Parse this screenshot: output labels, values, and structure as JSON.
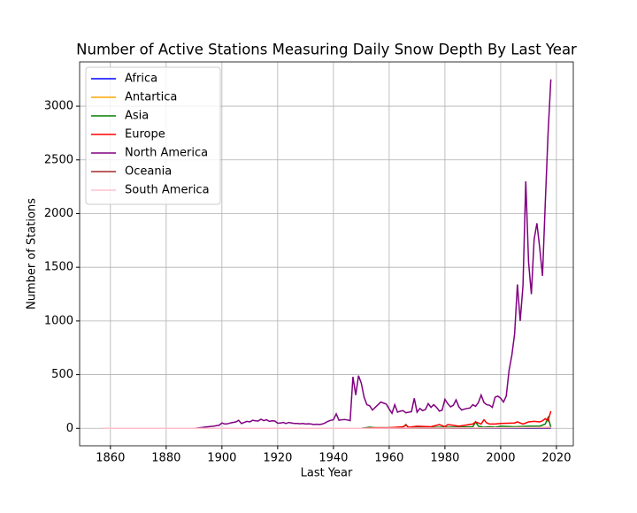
{
  "chart_data": {
    "type": "line",
    "title": "Number of Active Stations Measuring Daily Snow Depth By Last Year",
    "x_label": "Last Year",
    "y_label": "Number of Stations",
    "xlim": [
      1848.95,
      2026.05
    ],
    "ylim": [
      -162.5,
      3412.5
    ],
    "xticks": [
      1860,
      1880,
      1900,
      1920,
      1940,
      1960,
      1980,
      2000,
      2020
    ],
    "yticks": [
      0,
      500,
      1000,
      1500,
      2000,
      2500,
      3000
    ],
    "grid": true,
    "legend": "upper left",
    "series": [
      {
        "name": "Africa",
        "color": "#0000ff",
        "x": [
          1950,
          1990,
          2018
        ],
        "values": [
          0,
          1,
          2
        ]
      },
      {
        "name": "Antartica",
        "color": "#ffa500",
        "x": [
          1990,
          2000,
          2010,
          2018
        ],
        "values": [
          2,
          5,
          8,
          10
        ]
      },
      {
        "name": "Asia",
        "color": "#008000",
        "x": [
          1950,
          1953,
          1955,
          1960,
          1965,
          1966,
          1967,
          1970,
          1975,
          1980,
          1985,
          1990,
          1991,
          1992,
          1994,
          1996,
          1998,
          2000,
          2005,
          2010,
          2014,
          2016,
          2017,
          2018
        ],
        "values": [
          0,
          10,
          5,
          5,
          10,
          35,
          5,
          10,
          8,
          10,
          12,
          15,
          60,
          20,
          10,
          15,
          10,
          20,
          15,
          20,
          20,
          40,
          100,
          10
        ]
      },
      {
        "name": "Europe",
        "color": "#ff0000",
        "x": [
          1950,
          1955,
          1960,
          1965,
          1966,
          1967,
          1970,
          1975,
          1978,
          1980,
          1981,
          1985,
          1990,
          1991,
          1992,
          1993,
          1994,
          1995,
          1996,
          1998,
          2000,
          2005,
          2006,
          2008,
          2010,
          2012,
          2014,
          2015,
          2016,
          2017,
          2018
        ],
        "values": [
          0,
          5,
          5,
          15,
          30,
          10,
          20,
          15,
          35,
          15,
          35,
          20,
          40,
          60,
          50,
          40,
          80,
          50,
          40,
          40,
          45,
          50,
          60,
          40,
          60,
          65,
          60,
          70,
          90,
          70,
          160
        ]
      },
      {
        "name": "North America",
        "color": "#800080",
        "x": [
          1890,
          1891,
          1892,
          1893,
          1894,
          1895,
          1896,
          1897,
          1898,
          1899,
          1900,
          1901,
          1902,
          1903,
          1904,
          1905,
          1906,
          1907,
          1908,
          1909,
          1910,
          1911,
          1912,
          1913,
          1914,
          1915,
          1916,
          1917,
          1918,
          1919,
          1920,
          1921,
          1922,
          1923,
          1924,
          1925,
          1926,
          1927,
          1928,
          1929,
          1930,
          1931,
          1932,
          1933,
          1934,
          1935,
          1936,
          1937,
          1938,
          1939,
          1940,
          1941,
          1942,
          1943,
          1944,
          1945,
          1946,
          1947,
          1948,
          1949,
          1950,
          1951,
          1952,
          1953,
          1954,
          1955,
          1956,
          1957,
          1958,
          1959,
          1960,
          1961,
          1962,
          1963,
          1964,
          1965,
          1966,
          1967,
          1968,
          1969,
          1970,
          1971,
          1972,
          1973,
          1974,
          1975,
          1976,
          1977,
          1978,
          1979,
          1980,
          1981,
          1982,
          1983,
          1984,
          1985,
          1986,
          1987,
          1988,
          1989,
          1990,
          1991,
          1992,
          1993,
          1994,
          1995,
          1996,
          1997,
          1998,
          1999,
          2000,
          2001,
          2002,
          2003,
          2004,
          2005,
          2006,
          2007,
          2008,
          2009,
          2010,
          2011,
          2012,
          2013,
          2014,
          2015,
          2016,
          2017,
          2018
        ],
        "values": [
          0,
          2,
          5,
          8,
          12,
          15,
          18,
          20,
          25,
          28,
          50,
          40,
          42,
          50,
          55,
          60,
          75,
          45,
          55,
          65,
          60,
          75,
          70,
          68,
          85,
          72,
          80,
          65,
          70,
          68,
          48,
          50,
          55,
          45,
          55,
          50,
          45,
          45,
          42,
          45,
          40,
          42,
          40,
          35,
          38,
          35,
          40,
          50,
          65,
          75,
          80,
          135,
          75,
          80,
          82,
          78,
          72,
          480,
          310,
          490,
          420,
          290,
          220,
          210,
          170,
          195,
          220,
          245,
          235,
          225,
          180,
          140,
          220,
          150,
          160,
          165,
          145,
          150,
          155,
          280,
          150,
          185,
          165,
          175,
          230,
          195,
          220,
          195,
          160,
          170,
          270,
          230,
          200,
          215,
          265,
          200,
          170,
          180,
          185,
          190,
          220,
          205,
          240,
          310,
          240,
          220,
          215,
          195,
          290,
          300,
          280,
          245,
          300,
          540,
          680,
          880,
          1340,
          1000,
          1330,
          2300,
          1550,
          1250,
          1760,
          1910,
          1680,
          1420,
          2100,
          2750,
          3250
        ]
      },
      {
        "name": "Oceania",
        "color": "#a52a2a",
        "x": [
          1857,
          1900,
          1950,
          1990,
          2000,
          2010,
          2018
        ],
        "values": [
          0,
          0,
          0,
          2,
          3,
          5,
          5
        ]
      },
      {
        "name": "South America",
        "color": "#ffc0cb",
        "x": [
          1857,
          1950,
          2000,
          2018
        ],
        "values": [
          0,
          0,
          5,
          10
        ]
      }
    ]
  }
}
